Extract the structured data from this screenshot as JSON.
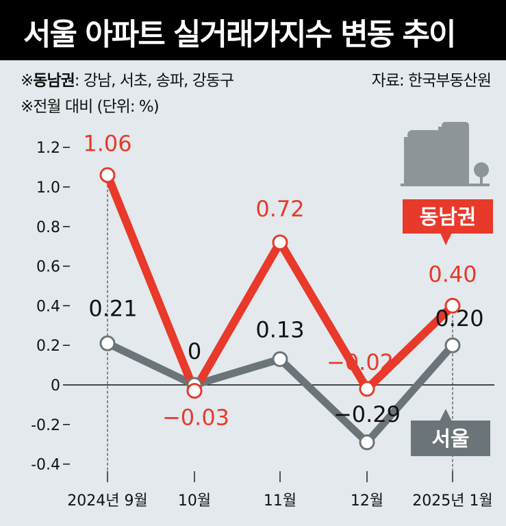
{
  "title": "서울 아파트 실거래가지수 변동 추이",
  "notes": {
    "region_prefix": "※",
    "region_name": "동남권",
    "region_list": ": 강남, 서초, 송파, 강동구",
    "unit": "※전월 대비 (단위: %)",
    "source": "자료: 한국부동산원"
  },
  "colors": {
    "background": "#e3e9ec",
    "title_bar": "#000000",
    "gangnam": "#e8392a",
    "seoul": "#6b7478"
  },
  "icons": [
    "buildings-icon"
  ],
  "chart_data": {
    "type": "line",
    "categories": [
      "2024년 9월",
      "10월",
      "11월",
      "12월",
      "2025년 1월"
    ],
    "ylim": [
      -0.4,
      1.2
    ],
    "yticks": [
      "1.2",
      "1.0",
      "0.8",
      "0.6",
      "0.4",
      "0.2",
      "0",
      "-0.2",
      "-0.4"
    ],
    "ytick_values": [
      1.2,
      1.0,
      0.8,
      0.6,
      0.4,
      0.2,
      0,
      -0.2,
      -0.4
    ],
    "series": [
      {
        "name": "동남권",
        "values": [
          1.06,
          -0.03,
          0.72,
          -0.02,
          0.4
        ],
        "labels": [
          "1.06",
          "−0.03",
          "0.72",
          "−0.02",
          "0.40"
        ]
      },
      {
        "name": "서울",
        "values": [
          0.21,
          0,
          0.13,
          -0.29,
          0.2
        ],
        "labels": [
          "0.21",
          "0",
          "0.13",
          "−0.29",
          "0.20"
        ]
      }
    ]
  }
}
